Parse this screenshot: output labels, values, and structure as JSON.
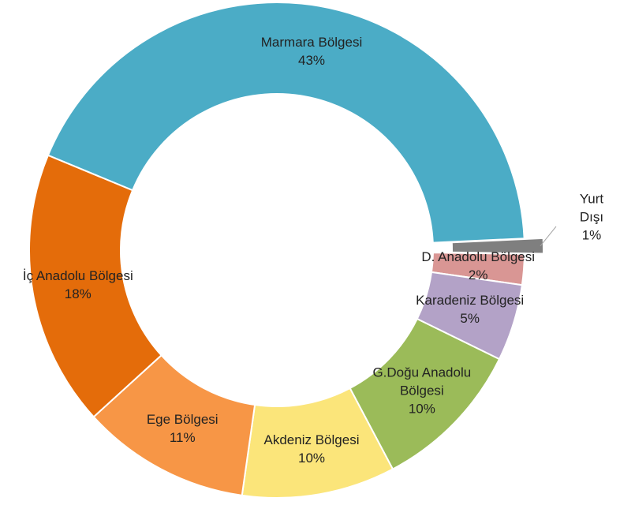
{
  "chart_data": {
    "type": "donut",
    "categories": [
      "Marmara Bölgesi",
      "Yurt Dışı",
      "D. Anadolu Bölgesi",
      "Karadeniz Bölgesi",
      "G.Doğu Anadolu Bölgesi",
      "Akdeniz Bölgesi",
      "Ege Bölgesi",
      "İç Anadolu Bölgesi"
    ],
    "values": [
      43,
      1,
      2,
      5,
      10,
      10,
      11,
      18
    ],
    "value_labels": [
      "43%",
      "1%",
      "2%",
      "5%",
      "10%",
      "10%",
      "11%",
      "18%"
    ],
    "colors": [
      "#4bacc6",
      "#7f7f7f",
      "#d99694",
      "#b3a2c7",
      "#9bbb59",
      "#fbe57a",
      "#f79646",
      "#e46c0a"
    ],
    "exploded_slice": 1
  }
}
